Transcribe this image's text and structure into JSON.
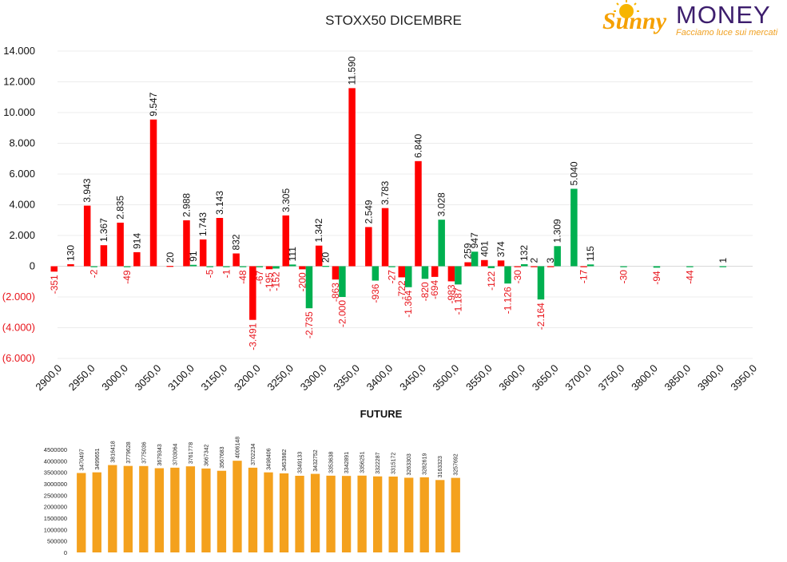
{
  "brand": {
    "name_part1": "Sunny",
    "name_part2": "MONEY",
    "tagline": "Facciamo luce sui mercati"
  },
  "chart_data": [
    {
      "type": "bar",
      "title": "STOXX50 DICEMBRE",
      "ylim": [
        -6000,
        14000
      ],
      "yticks": [
        14000,
        12000,
        10000,
        8000,
        6000,
        4000,
        2000,
        0,
        -2000,
        -4000,
        -6000
      ],
      "ytick_labels": [
        "14.000",
        "12.000",
        "10.000",
        "8.000",
        "6.000",
        "4.000",
        "2.000",
        "0",
        "(2.000)",
        "(4.000)",
        "(6.000)"
      ],
      "xticks": [
        2900,
        2950,
        3000,
        3050,
        3100,
        3150,
        3200,
        3250,
        3300,
        3350,
        3400,
        3450,
        3500,
        3550,
        3600,
        3650,
        3700,
        3750,
        3800,
        3850,
        3900,
        3950
      ],
      "xtick_labels": [
        "2900,0",
        "2950,0",
        "3000,0",
        "3050,0",
        "3100,0",
        "3150,0",
        "3200,0",
        "3250,0",
        "3300,0",
        "3350,0",
        "3400,0",
        "3450,0",
        "3500,0",
        "3550,0",
        "3600,0",
        "3650,0",
        "3700,0",
        "3750,0",
        "3800,0",
        "3850,0",
        "3900,0",
        "3950,0"
      ],
      "colors": {
        "red": "#ff0000",
        "green": "#00b050",
        "negative_label": "#e8141b",
        "positive_label": "#111111"
      },
      "series": [
        {
          "color": "red",
          "points": [
            {
              "strike": 2900,
              "value": -351,
              "label": "-351"
            },
            {
              "strike": 2925,
              "value": 130,
              "label": "130"
            },
            {
              "strike": 2950,
              "value": 3943,
              "label": "3.943"
            },
            {
              "strike": 2975,
              "value": 1367,
              "label": "1.367"
            },
            {
              "strike": 3000,
              "value": 2835,
              "label": "2.835"
            },
            {
              "strike": 3025,
              "value": 914,
              "label": "914"
            },
            {
              "strike": 3050,
              "value": 9547,
              "label": "9.547"
            },
            {
              "strike": 3075,
              "value": 20,
              "label": "20"
            },
            {
              "strike": 3100,
              "value": 2988,
              "label": "2.988"
            },
            {
              "strike": 3125,
              "value": 1743,
              "label": "1.743"
            },
            {
              "strike": 3150,
              "value": 3143,
              "label": "3.143"
            },
            {
              "strike": 3175,
              "value": 832,
              "label": "832"
            },
            {
              "strike": 3200,
              "value": -3491,
              "label": "-3.491"
            },
            {
              "strike": 3225,
              "value": -195,
              "label": "-195"
            },
            {
              "strike": 3250,
              "value": 3305,
              "label": "3.305"
            },
            {
              "strike": 3275,
              "value": -200,
              "label": "-200"
            },
            {
              "strike": 3300,
              "value": 1342,
              "label": "1.342"
            },
            {
              "strike": 3325,
              "value": -863,
              "label": "-863"
            },
            {
              "strike": 3350,
              "value": 11590,
              "label": "11.590"
            },
            {
              "strike": 3375,
              "value": 2549,
              "label": "2.549"
            },
            {
              "strike": 3400,
              "value": 3783,
              "label": "3.783"
            },
            {
              "strike": 3425,
              "value": -722,
              "label": "-722"
            },
            {
              "strike": 3450,
              "value": 6840,
              "label": "6.840"
            },
            {
              "strike": 3475,
              "value": -694,
              "label": "-694"
            },
            {
              "strike": 3500,
              "value": -983,
              "label": "-983"
            },
            {
              "strike": 3525,
              "value": 259,
              "label": "259"
            },
            {
              "strike": 3550,
              "value": 401,
              "label": "401"
            },
            {
              "strike": 3575,
              "value": 374,
              "label": "374"
            },
            {
              "strike": 3600,
              "value": -30,
              "label": "-30"
            },
            {
              "strike": 3625,
              "value": 2,
              "label": "2"
            },
            {
              "strike": 3650,
              "value": 3,
              "label": "3"
            },
            {
              "strike": 3700,
              "value": -17,
              "label": "-17"
            }
          ]
        },
        {
          "color": "green",
          "points": [
            {
              "strike": 2950,
              "value": -2,
              "label": "-2"
            },
            {
              "strike": 3000,
              "value": -49,
              "label": "-49"
            },
            {
              "strike": 3100,
              "value": 91,
              "label": "91"
            },
            {
              "strike": 3125,
              "value": -5,
              "label": "-5"
            },
            {
              "strike": 3150,
              "value": -1,
              "label": "-1"
            },
            {
              "strike": 3175,
              "value": -48,
              "label": "-48"
            },
            {
              "strike": 3200,
              "value": -67,
              "label": "-67"
            },
            {
              "strike": 3225,
              "value": -152,
              "label": "-152"
            },
            {
              "strike": 3250,
              "value": 111,
              "label": "111"
            },
            {
              "strike": 3275,
              "value": -2735,
              "label": "-2.735"
            },
            {
              "strike": 3300,
              "value": 20,
              "label": "20"
            },
            {
              "strike": 3325,
              "value": -2000,
              "label": "-2.000"
            },
            {
              "strike": 3375,
              "value": -936,
              "label": "-936"
            },
            {
              "strike": 3400,
              "value": -27,
              "label": "-27"
            },
            {
              "strike": 3425,
              "value": -1364,
              "label": "-1.364"
            },
            {
              "strike": 3450,
              "value": -820,
              "label": "-820"
            },
            {
              "strike": 3475,
              "value": 3028,
              "label": "3.028"
            },
            {
              "strike": 3500,
              "value": -1187,
              "label": "-1.187"
            },
            {
              "strike": 3525,
              "value": 947,
              "label": "947"
            },
            {
              "strike": 3550,
              "value": -122,
              "label": "-122"
            },
            {
              "strike": 3575,
              "value": -1126,
              "label": "-1.126"
            },
            {
              "strike": 3600,
              "value": 132,
              "label": "132"
            },
            {
              "strike": 3625,
              "value": -2164,
              "label": "-2.164"
            },
            {
              "strike": 3650,
              "value": 1309,
              "label": "1.309"
            },
            {
              "strike": 3675,
              "value": 5040,
              "label": "5.040"
            },
            {
              "strike": 3700,
              "value": 115,
              "label": "115"
            },
            {
              "strike": 3750,
              "value": -30,
              "label": "-30"
            },
            {
              "strike": 3800,
              "value": -94,
              "label": "-94"
            },
            {
              "strike": 3850,
              "value": -44,
              "label": "-44"
            },
            {
              "strike": 3900,
              "value": 1,
              "label": "1"
            }
          ]
        }
      ]
    },
    {
      "type": "bar",
      "title": "FUTURE",
      "ylim": [
        0,
        4500000
      ],
      "yticks": [
        0,
        500000,
        1000000,
        1500000,
        2000000,
        2500000,
        3000000,
        3500000,
        4000000,
        4500000
      ],
      "ytick_labels": [
        "0",
        "500000",
        "1000000",
        "1500000",
        "2000000",
        "2500000",
        "3000000",
        "3500000",
        "4000000",
        "4500000"
      ],
      "color": "#f4a11d",
      "values": [
        3470497,
        3499651,
        3816418,
        3779628,
        3775036,
        3679343,
        3703064,
        3761778,
        3667342,
        3567683,
        4006148,
        3702234,
        3498406,
        3453982,
        3349133,
        3432752,
        3353638,
        3342891,
        3356251,
        3322287,
        3315172,
        3263303,
        3282619,
        3163323,
        3257692
      ],
      "labels": [
        "3470497",
        "3499651",
        "3816418",
        "3779628",
        "3775036",
        "3679343",
        "3703064",
        "3761778",
        "3667342",
        "3567683",
        "4006148",
        "3702234",
        "3498406",
        "3453982",
        "3349133",
        "3432752",
        "3353638",
        "3342891",
        "3356251",
        "3322287",
        "3315172",
        "3263303",
        "3282619",
        "3163323",
        "3257692"
      ]
    }
  ]
}
